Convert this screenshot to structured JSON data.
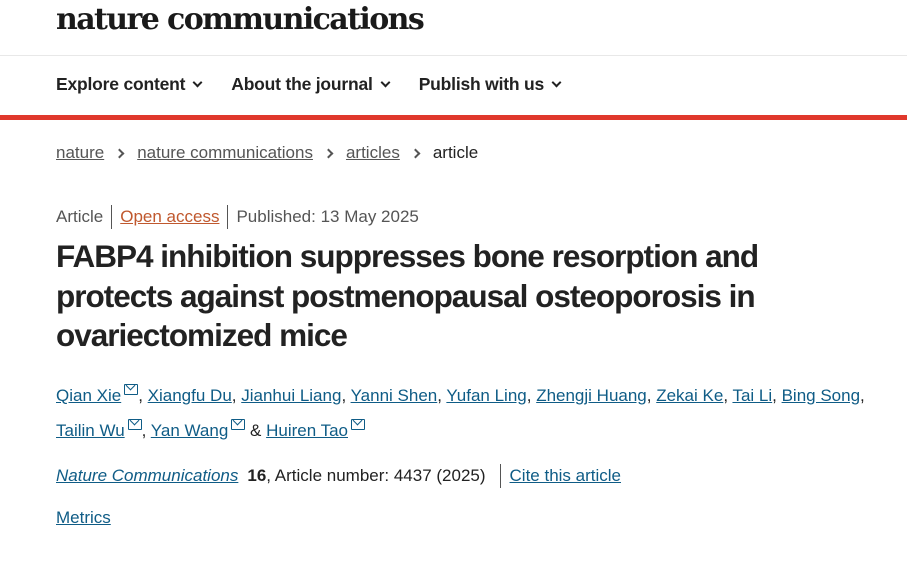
{
  "site": {
    "logo": "nature communications"
  },
  "nav": [
    {
      "label": "Explore content"
    },
    {
      "label": "About the journal"
    },
    {
      "label": "Publish with us"
    }
  ],
  "breadcrumb": [
    {
      "label": "nature"
    },
    {
      "label": "nature communications"
    },
    {
      "label": "articles"
    },
    {
      "label": "article"
    }
  ],
  "meta": {
    "type": "Article",
    "access": "Open access",
    "published": "Published: 13 May 2025"
  },
  "title": "FABP4 inhibition suppresses bone resorption and protects against postmenopausal osteoporosis in ovariectomized mice",
  "authors": [
    {
      "name": "Qian Xie",
      "email": true
    },
    {
      "name": "Xiangfu Du"
    },
    {
      "name": "Jianhui Liang"
    },
    {
      "name": "Yanni Shen"
    },
    {
      "name": "Yufan Ling"
    },
    {
      "name": "Zhengji Huang"
    },
    {
      "name": "Zekai Ke"
    },
    {
      "name": "Tai Li"
    },
    {
      "name": "Bing Song"
    },
    {
      "name": "Tailin Wu",
      "email": true
    },
    {
      "name": "Yan Wang",
      "email": true
    },
    {
      "name": "Huiren Tao",
      "email": true
    }
  ],
  "citation": {
    "journal": "Nature Communications",
    "volume": "16",
    "rest": ", Article number: 4437 (2025)",
    "cite_label": "Cite this article"
  },
  "metrics_label": "Metrics",
  "colors": {
    "accent": "#e0382c",
    "link": "#0f5c86",
    "open_access": "#c0582e"
  }
}
